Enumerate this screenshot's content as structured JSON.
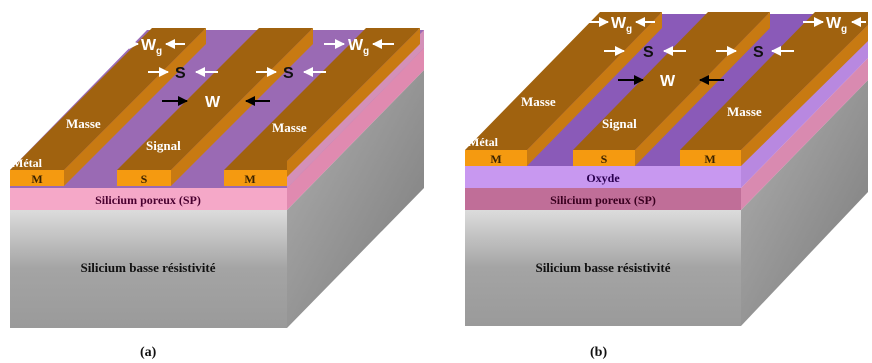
{
  "figure_a": {
    "caption": "(a)",
    "metal_label": "Métal",
    "masse_left": "Masse",
    "masse_right": "Masse",
    "signal_label": "Signal",
    "pad_m1": "M",
    "pad_s": "S",
    "pad_m2": "M",
    "porous_label": "Silicium poreux (SP)",
    "substrate_label": "Silicium basse résistivité",
    "dim_w": "W",
    "dim_s1": "S",
    "dim_s2": "S",
    "dim_wg1": "W",
    "dim_wg1_sub": "g",
    "dim_wg2": "W",
    "dim_wg2_sub": "g"
  },
  "figure_b": {
    "caption": "(b)",
    "metal_label": "Métal",
    "masse_left": "Masse",
    "masse_right": "Masse",
    "signal_label": "Signal",
    "pad_m1": "M",
    "pad_s": "S",
    "pad_m2": "M",
    "oxide_label": "Oxyde",
    "porous_label": "Silicium poreux (SP)",
    "substrate_label": "Silicium basse résistivité",
    "dim_w": "W",
    "dim_s1": "S",
    "dim_s2": "S",
    "dim_wg1": "W",
    "dim_wg1_sub": "g",
    "dim_wg2": "W",
    "dim_wg2_sub": "g"
  },
  "colors": {
    "metal_top": "#a0620f",
    "metal_front": "#f59a10",
    "metal_side": "#c87a12",
    "slot_a": "#9a6ab4",
    "slot_b": "#8a5ab8",
    "porous_a": "#f5a8c8",
    "porous_b": "#c06e98",
    "oxide": "#c898f0",
    "substrate_front": "#a8a8a8",
    "substrate_side": "#8a8a8a"
  }
}
